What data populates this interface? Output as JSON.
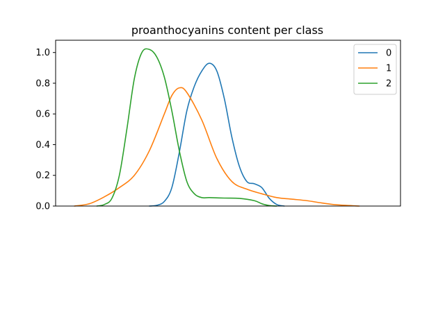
{
  "chart_data": {
    "type": "line",
    "title": "proanthocyanins content per class",
    "xlabel": "",
    "ylabel": "",
    "ylim": [
      0,
      1.08
    ],
    "xlim": [
      -0.05,
      4.55
    ],
    "grid": false,
    "legend_position": "top-right",
    "yticks": [
      "0.0",
      "0.2",
      "0.4",
      "0.6",
      "0.8",
      "1.0"
    ],
    "series": [
      {
        "name": "0",
        "color": "#1f77b4",
        "points": [
          [
            1.2,
            0.0
          ],
          [
            1.3,
            0.005
          ],
          [
            1.4,
            0.03
          ],
          [
            1.5,
            0.12
          ],
          [
            1.6,
            0.35
          ],
          [
            1.7,
            0.62
          ],
          [
            1.8,
            0.78
          ],
          [
            1.9,
            0.88
          ],
          [
            2.0,
            0.93
          ],
          [
            2.1,
            0.88
          ],
          [
            2.2,
            0.7
          ],
          [
            2.3,
            0.45
          ],
          [
            2.4,
            0.26
          ],
          [
            2.5,
            0.16
          ],
          [
            2.6,
            0.145
          ],
          [
            2.7,
            0.12
          ],
          [
            2.8,
            0.05
          ],
          [
            2.9,
            0.01
          ],
          [
            3.0,
            0.0
          ]
        ]
      },
      {
        "name": "1",
        "color": "#ff7f0e",
        "points": [
          [
            0.2,
            0.0
          ],
          [
            0.4,
            0.015
          ],
          [
            0.6,
            0.06
          ],
          [
            0.8,
            0.12
          ],
          [
            1.0,
            0.2
          ],
          [
            1.2,
            0.36
          ],
          [
            1.4,
            0.6
          ],
          [
            1.5,
            0.72
          ],
          [
            1.6,
            0.77
          ],
          [
            1.7,
            0.74
          ],
          [
            1.9,
            0.56
          ],
          [
            2.1,
            0.31
          ],
          [
            2.3,
            0.16
          ],
          [
            2.5,
            0.11
          ],
          [
            2.7,
            0.08
          ],
          [
            2.9,
            0.055
          ],
          [
            3.1,
            0.045
          ],
          [
            3.3,
            0.035
          ],
          [
            3.5,
            0.02
          ],
          [
            3.7,
            0.008
          ],
          [
            4.0,
            0.0
          ]
        ]
      },
      {
        "name": "2",
        "color": "#2ca02c",
        "points": [
          [
            0.5,
            0.0
          ],
          [
            0.6,
            0.01
          ],
          [
            0.7,
            0.05
          ],
          [
            0.8,
            0.2
          ],
          [
            0.9,
            0.5
          ],
          [
            1.0,
            0.83
          ],
          [
            1.1,
            1.0
          ],
          [
            1.2,
            1.02
          ],
          [
            1.3,
            0.97
          ],
          [
            1.4,
            0.84
          ],
          [
            1.5,
            0.62
          ],
          [
            1.6,
            0.36
          ],
          [
            1.7,
            0.16
          ],
          [
            1.8,
            0.08
          ],
          [
            1.9,
            0.055
          ],
          [
            2.0,
            0.055
          ],
          [
            2.2,
            0.052
          ],
          [
            2.4,
            0.05
          ],
          [
            2.6,
            0.035
          ],
          [
            2.7,
            0.015
          ],
          [
            2.8,
            0.003
          ],
          [
            2.9,
            0.0
          ]
        ]
      }
    ]
  }
}
